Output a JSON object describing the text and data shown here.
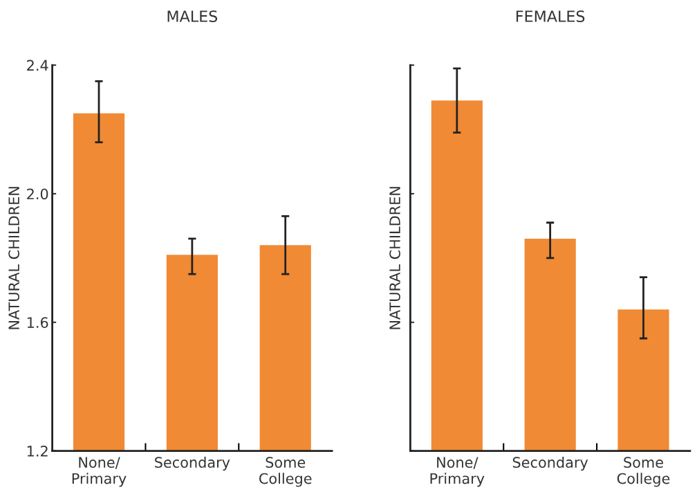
{
  "chart_data": [
    {
      "type": "bar",
      "title": "MALES",
      "ylabel": "NATURAL CHILDREN",
      "categories": [
        "None/\nPrimary",
        "Secondary",
        "Some\nCollege"
      ],
      "values": [
        2.25,
        1.81,
        1.84
      ],
      "errors": [
        [
          2.16,
          2.35
        ],
        [
          1.75,
          1.86
        ],
        [
          1.75,
          1.93
        ]
      ],
      "color": "#f08a34",
      "ylim": [
        1.2,
        2.4
      ],
      "yticks": [
        1.2,
        1.6,
        {
          "value": 2.0,
          "label": "2.0"
        },
        2.4
      ],
      "grid": false
    },
    {
      "type": "bar",
      "title": "FEMALES",
      "ylabel": "NATURAL CHILDREN",
      "categories": [
        "None/\nPrimary",
        "Secondary",
        "Some\nCollege"
      ],
      "values": [
        2.29,
        1.86,
        1.64
      ],
      "errors": [
        [
          2.19,
          2.39
        ],
        [
          1.8,
          1.91
        ],
        [
          1.55,
          1.74
        ]
      ],
      "color": "#f08a34",
      "ylim": [
        1.2,
        2.4
      ],
      "yticks": [
        1.2,
        1.6,
        2.0,
        2.4
      ],
      "tick_labels": "x",
      "grid": false
    }
  ]
}
